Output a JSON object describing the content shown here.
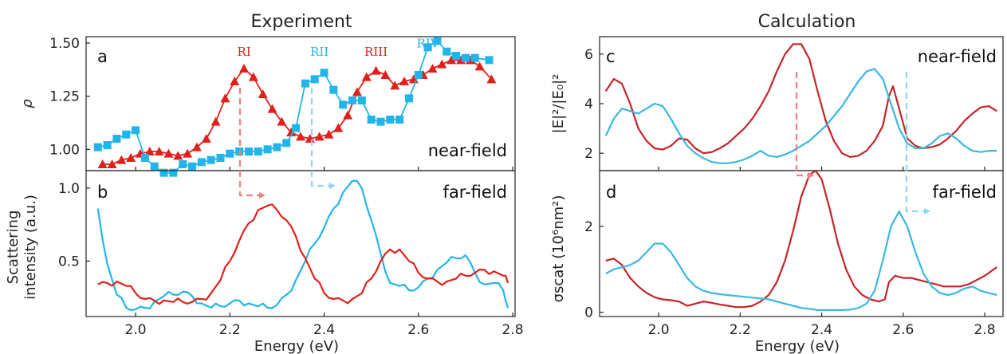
{
  "titles": {
    "left": "Experiment",
    "right": "Calculation"
  },
  "colors": {
    "red": "#e1201b",
    "blue": "#22b5ea",
    "dark_red": "#c42428",
    "calc_blue": "#3ab8e0"
  },
  "panels": {
    "a": {
      "label": "a",
      "tag": "near-field",
      "ylabel": "ρ"
    },
    "b": {
      "label": "b",
      "tag": "far-field",
      "ylabel_line1": "Scattering",
      "ylabel_line2": "intensity (a.u.)"
    },
    "c": {
      "label": "c",
      "tag": "near-field",
      "ylabel": "|E|²/|E₀|²"
    },
    "d": {
      "label": "d",
      "tag": "far-field",
      "ylabel": "σscat (10⁶nm²)"
    }
  },
  "xlabel": "Energy (eV)",
  "chart_data": [
    {
      "id": "a",
      "type": "scatter",
      "xlim": [
        1.895,
        2.805
      ],
      "ylim": [
        0.9,
        1.53
      ],
      "yticks": [
        1.0,
        1.25,
        1.5
      ],
      "ytick_labels": [
        "1.00",
        "1.25",
        "1.50"
      ],
      "annotations": [
        {
          "text": "RI",
          "x": 2.23,
          "y": 1.44,
          "color": "red"
        },
        {
          "text": "RII",
          "x": 2.39,
          "y": 1.44,
          "color": "blue"
        },
        {
          "text": "RIII",
          "x": 2.51,
          "y": 1.44,
          "color": "red"
        },
        {
          "text": "RIV",
          "x": 2.62,
          "y": 1.48,
          "color": "blue"
        }
      ],
      "series": [
        {
          "color": "red",
          "marker": "triangle",
          "x": [
            1.93,
            1.95,
            1.97,
            1.99,
            2.01,
            2.03,
            2.05,
            2.07,
            2.09,
            2.11,
            2.13,
            2.15,
            2.17,
            2.19,
            2.21,
            2.23,
            2.25,
            2.27,
            2.29,
            2.31,
            2.33,
            2.35,
            2.37,
            2.39,
            2.41,
            2.43,
            2.45,
            2.47,
            2.49,
            2.51,
            2.53,
            2.55,
            2.57,
            2.59,
            2.61,
            2.63,
            2.65,
            2.67,
            2.69,
            2.71,
            2.73,
            2.755
          ],
          "y": [
            0.93,
            0.93,
            0.95,
            0.96,
            0.98,
            0.99,
            0.99,
            0.98,
            0.97,
            0.98,
            1.01,
            1.05,
            1.13,
            1.24,
            1.32,
            1.38,
            1.34,
            1.26,
            1.19,
            1.13,
            1.08,
            1.06,
            1.05,
            1.06,
            1.07,
            1.1,
            1.16,
            1.27,
            1.34,
            1.37,
            1.35,
            1.3,
            1.32,
            1.33,
            1.35,
            1.38,
            1.4,
            1.42,
            1.42,
            1.42,
            1.39,
            1.33
          ]
        },
        {
          "color": "blue",
          "marker": "square",
          "x": [
            1.92,
            1.94,
            1.96,
            1.98,
            2.0,
            2.02,
            2.04,
            2.06,
            2.08,
            2.1,
            2.12,
            2.14,
            2.16,
            2.18,
            2.2,
            2.22,
            2.24,
            2.26,
            2.28,
            2.3,
            2.32,
            2.34,
            2.36,
            2.38,
            2.4,
            2.42,
            2.44,
            2.46,
            2.48,
            2.5,
            2.52,
            2.54,
            2.56,
            2.58,
            2.6,
            2.62,
            2.64,
            2.66,
            2.68,
            2.7,
            2.72,
            2.75
          ],
          "y": [
            1.01,
            1.02,
            1.05,
            1.07,
            1.09,
            0.96,
            0.92,
            0.89,
            0.89,
            0.93,
            0.92,
            0.94,
            0.95,
            0.96,
            0.98,
            0.99,
            0.99,
            0.99,
            1.0,
            1.01,
            1.03,
            1.1,
            1.31,
            1.33,
            1.36,
            1.28,
            1.21,
            1.23,
            1.23,
            1.14,
            1.13,
            1.14,
            1.14,
            1.24,
            1.35,
            1.48,
            1.51,
            1.46,
            1.44,
            1.43,
            1.43,
            1.42
          ]
        }
      ]
    },
    {
      "id": "b",
      "type": "line",
      "xlim": [
        1.895,
        2.805
      ],
      "ylim": [
        0.12,
        1.12
      ],
      "xticks": [
        2.0,
        2.2,
        2.4,
        2.6,
        2.8
      ],
      "xtick_labels": [
        "2.0",
        "2.2",
        "2.4",
        "2.6",
        "2.8"
      ],
      "yticks": [
        0.5,
        1.0
      ],
      "ytick_labels": [
        "0.5",
        "1.0"
      ],
      "series": [
        {
          "color": "blue",
          "x": [
            1.92,
            1.94,
            1.96,
            1.98,
            2.0,
            2.02,
            2.04,
            2.06,
            2.08,
            2.1,
            2.12,
            2.14,
            2.16,
            2.18,
            2.2,
            2.22,
            2.24,
            2.26,
            2.28,
            2.3,
            2.32,
            2.34,
            2.36,
            2.38,
            2.4,
            2.42,
            2.44,
            2.46,
            2.48,
            2.5,
            2.52,
            2.54,
            2.56,
            2.58,
            2.6,
            2.62,
            2.64,
            2.66,
            2.68,
            2.7,
            2.72,
            2.74,
            2.76,
            2.78,
            2.79
          ],
          "y": [
            0.86,
            0.48,
            0.27,
            0.18,
            0.17,
            0.18,
            0.22,
            0.26,
            0.27,
            0.29,
            0.26,
            0.21,
            0.18,
            0.19,
            0.21,
            0.23,
            0.21,
            0.19,
            0.18,
            0.2,
            0.27,
            0.37,
            0.5,
            0.62,
            0.73,
            0.86,
            0.97,
            1.05,
            1.0,
            0.78,
            0.55,
            0.35,
            0.33,
            0.3,
            0.32,
            0.38,
            0.44,
            0.49,
            0.52,
            0.54,
            0.42,
            0.34,
            0.35,
            0.3,
            0.18
          ]
        },
        {
          "color": "red",
          "x": [
            1.92,
            1.94,
            1.96,
            1.98,
            2.0,
            2.02,
            2.04,
            2.06,
            2.08,
            2.1,
            2.12,
            2.14,
            2.16,
            2.18,
            2.2,
            2.22,
            2.24,
            2.26,
            2.28,
            2.3,
            2.32,
            2.34,
            2.36,
            2.38,
            2.4,
            2.42,
            2.44,
            2.46,
            2.48,
            2.5,
            2.52,
            2.54,
            2.56,
            2.58,
            2.6,
            2.62,
            2.64,
            2.66,
            2.68,
            2.7,
            2.72,
            2.74,
            2.76,
            2.78,
            2.79
          ],
          "y": [
            0.34,
            0.35,
            0.36,
            0.33,
            0.28,
            0.24,
            0.23,
            0.23,
            0.22,
            0.22,
            0.22,
            0.24,
            0.28,
            0.37,
            0.5,
            0.64,
            0.76,
            0.85,
            0.88,
            0.85,
            0.78,
            0.67,
            0.52,
            0.38,
            0.28,
            0.24,
            0.23,
            0.24,
            0.28,
            0.38,
            0.5,
            0.58,
            0.58,
            0.5,
            0.42,
            0.38,
            0.36,
            0.36,
            0.38,
            0.4,
            0.42,
            0.44,
            0.43,
            0.4,
            0.35
          ]
        }
      ]
    },
    {
      "id": "c",
      "type": "line",
      "xlim": [
        1.855,
        2.845
      ],
      "ylim": [
        1.3,
        6.7
      ],
      "yticks": [
        2,
        4,
        6
      ],
      "ytick_labels": [
        "2",
        "4",
        "6"
      ],
      "series": [
        {
          "color": "dark_red",
          "x": [
            1.87,
            1.89,
            1.91,
            1.93,
            1.95,
            1.97,
            1.99,
            2.01,
            2.03,
            2.05,
            2.07,
            2.09,
            2.11,
            2.13,
            2.15,
            2.17,
            2.19,
            2.21,
            2.23,
            2.25,
            2.27,
            2.29,
            2.31,
            2.33,
            2.35,
            2.37,
            2.39,
            2.41,
            2.43,
            2.45,
            2.47,
            2.49,
            2.51,
            2.53,
            2.55,
            2.565,
            2.575,
            2.59,
            2.61,
            2.63,
            2.65,
            2.67,
            2.69,
            2.71,
            2.73,
            2.75,
            2.77,
            2.79,
            2.81,
            2.83
          ],
          "y": [
            4.5,
            5.0,
            4.8,
            4.0,
            3.0,
            2.5,
            2.2,
            2.15,
            2.3,
            2.6,
            2.55,
            2.2,
            2.0,
            2.05,
            2.2,
            2.4,
            2.7,
            3.0,
            3.4,
            3.9,
            4.5,
            5.3,
            6.0,
            6.4,
            6.4,
            5.8,
            4.5,
            3.3,
            2.5,
            2.0,
            1.85,
            1.9,
            2.1,
            2.5,
            3.1,
            4.3,
            4.7,
            3.8,
            2.6,
            2.3,
            2.2,
            2.25,
            2.35,
            2.6,
            2.9,
            3.3,
            3.6,
            3.85,
            3.9,
            3.7
          ]
        },
        {
          "color": "calc_blue",
          "x": [
            1.87,
            1.89,
            1.91,
            1.93,
            1.95,
            1.97,
            1.99,
            2.01,
            2.03,
            2.05,
            2.07,
            2.09,
            2.11,
            2.13,
            2.15,
            2.17,
            2.19,
            2.21,
            2.23,
            2.25,
            2.27,
            2.29,
            2.31,
            2.33,
            2.35,
            2.37,
            2.39,
            2.41,
            2.43,
            2.45,
            2.47,
            2.49,
            2.51,
            2.53,
            2.55,
            2.57,
            2.59,
            2.61,
            2.63,
            2.65,
            2.67,
            2.69,
            2.71,
            2.73,
            2.75,
            2.77,
            2.79,
            2.81,
            2.83
          ],
          "y": [
            2.7,
            3.4,
            3.8,
            3.7,
            3.6,
            3.8,
            4.0,
            3.9,
            3.4,
            2.8,
            2.3,
            2.0,
            1.8,
            1.65,
            1.6,
            1.6,
            1.65,
            1.75,
            1.9,
            2.1,
            1.9,
            1.85,
            1.95,
            2.1,
            2.3,
            2.5,
            2.8,
            3.1,
            3.5,
            3.9,
            4.4,
            4.9,
            5.3,
            5.4,
            5.0,
            4.0,
            3.0,
            2.4,
            2.2,
            2.2,
            2.4,
            2.7,
            2.8,
            2.6,
            2.3,
            2.1,
            2.05,
            2.1,
            2.1
          ]
        }
      ]
    },
    {
      "id": "d",
      "type": "line",
      "xlim": [
        1.855,
        2.845
      ],
      "ylim": [
        -0.1,
        3.3
      ],
      "xticks": [
        2.0,
        2.2,
        2.4,
        2.6,
        2.8
      ],
      "xtick_labels": [
        "2.0",
        "2.2",
        "2.4",
        "2.6",
        "2.8"
      ],
      "yticks": [
        0,
        2
      ],
      "ytick_labels": [
        "0",
        "2"
      ],
      "series": [
        {
          "color": "dark_red",
          "x": [
            1.87,
            1.89,
            1.91,
            1.93,
            1.95,
            1.97,
            1.99,
            2.01,
            2.03,
            2.05,
            2.07,
            2.09,
            2.11,
            2.13,
            2.15,
            2.17,
            2.19,
            2.21,
            2.23,
            2.25,
            2.27,
            2.29,
            2.31,
            2.33,
            2.35,
            2.37,
            2.385,
            2.4,
            2.42,
            2.44,
            2.46,
            2.48,
            2.5,
            2.52,
            2.54,
            2.555,
            2.565,
            2.58,
            2.6,
            2.62,
            2.64,
            2.66,
            2.68,
            2.7,
            2.72,
            2.74,
            2.76,
            2.78,
            2.8,
            2.83
          ],
          "y": [
            1.2,
            1.25,
            1.1,
            0.8,
            0.6,
            0.45,
            0.35,
            0.3,
            0.28,
            0.25,
            0.15,
            0.2,
            0.25,
            0.22,
            0.18,
            0.15,
            0.12,
            0.12,
            0.15,
            0.25,
            0.4,
            0.7,
            1.2,
            1.9,
            2.7,
            3.2,
            3.3,
            3.1,
            2.4,
            1.6,
            1.0,
            0.6,
            0.4,
            0.3,
            0.25,
            0.3,
            0.7,
            0.85,
            0.8,
            0.8,
            0.75,
            0.7,
            0.65,
            0.6,
            0.6,
            0.6,
            0.65,
            0.75,
            0.85,
            1.05
          ]
        },
        {
          "color": "calc_blue",
          "x": [
            1.87,
            1.89,
            1.91,
            1.93,
            1.95,
            1.97,
            1.99,
            2.01,
            2.03,
            2.05,
            2.07,
            2.09,
            2.11,
            2.13,
            2.15,
            2.17,
            2.19,
            2.21,
            2.23,
            2.25,
            2.27,
            2.29,
            2.31,
            2.33,
            2.35,
            2.37,
            2.39,
            2.41,
            2.43,
            2.45,
            2.47,
            2.49,
            2.51,
            2.53,
            2.55,
            2.57,
            2.59,
            2.61,
            2.63,
            2.65,
            2.67,
            2.69,
            2.71,
            2.73,
            2.75,
            2.77,
            2.79,
            2.81,
            2.83
          ],
          "y": [
            0.9,
            1.0,
            1.05,
            1.1,
            1.2,
            1.4,
            1.6,
            1.6,
            1.4,
            1.1,
            0.8,
            0.6,
            0.5,
            0.45,
            0.42,
            0.4,
            0.38,
            0.36,
            0.34,
            0.32,
            0.3,
            0.25,
            0.2,
            0.15,
            0.1,
            0.08,
            0.05,
            0.05,
            0.05,
            0.05,
            0.06,
            0.1,
            0.2,
            0.5,
            1.2,
            2.0,
            2.35,
            2.0,
            1.4,
            0.9,
            0.6,
            0.45,
            0.4,
            0.45,
            0.55,
            0.6,
            0.5,
            0.45,
            0.4
          ]
        }
      ]
    }
  ]
}
